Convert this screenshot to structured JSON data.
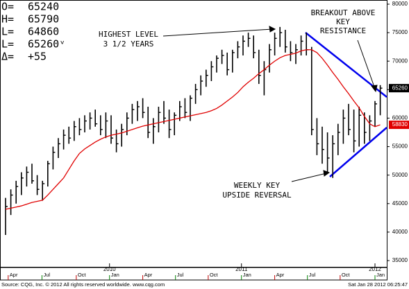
{
  "quote": [
    {
      "label": "O=",
      "value": "65240"
    },
    {
      "label": "H=",
      "value": "65790"
    },
    {
      "label": "L=",
      "value": "64860"
    },
    {
      "label": "L=",
      "value": "65260ᵛ"
    },
    {
      "label": "Δ=",
      "value": "+55"
    }
  ],
  "chart_data": {
    "type": "ohlc",
    "categories": [
      null,
      null,
      null,
      null,
      null,
      null,
      null,
      null,
      null,
      null,
      null,
      null,
      null,
      null,
      null,
      null,
      null,
      null,
      null,
      null,
      null,
      null,
      null,
      null,
      null,
      null,
      null,
      null,
      null,
      null,
      null,
      null,
      null,
      null,
      null,
      null,
      null,
      null,
      null,
      null,
      null,
      null,
      null,
      null,
      null,
      null,
      null,
      null,
      null,
      null,
      null,
      null,
      null,
      null,
      null,
      null,
      null,
      null,
      null,
      null,
      null,
      null,
      null,
      null,
      null,
      null,
      null,
      null,
      null,
      null,
      null,
      null
    ],
    "high": [
      46000,
      47500,
      49000,
      50500,
      51500,
      52000,
      50000,
      49000,
      52500,
      55000,
      56500,
      58000,
      58500,
      59500,
      60000,
      60500,
      61000,
      61500,
      60500,
      61000,
      60500,
      58000,
      59000,
      61000,
      62500,
      63000,
      63500,
      62000,
      60000,
      62000,
      63000,
      61500,
      61000,
      63000,
      63500,
      64000,
      66000,
      67500,
      68500,
      70000,
      71000,
      72000,
      71500,
      72000,
      73500,
      74500,
      75000,
      74500,
      72000,
      70000,
      73000,
      75000,
      76000,
      75500,
      73500,
      73000,
      74500,
      75000,
      72500,
      60000,
      58500,
      57500,
      57000,
      59000,
      61500,
      62500,
      61500,
      62000,
      61000,
      60500,
      63000,
      65790
    ],
    "low": [
      39500,
      43000,
      45000,
      46500,
      48000,
      48500,
      46500,
      45500,
      48000,
      51000,
      53000,
      54500,
      55500,
      56000,
      57000,
      57500,
      58000,
      58500,
      57000,
      56500,
      55500,
      54000,
      55000,
      57000,
      59000,
      59500,
      60000,
      56500,
      55500,
      57500,
      59000,
      56500,
      57000,
      59500,
      60000,
      59500,
      62500,
      64000,
      65500,
      66500,
      68000,
      69500,
      67500,
      68000,
      70500,
      71000,
      72500,
      70500,
      66000,
      64000,
      68000,
      71000,
      72500,
      71500,
      70000,
      69500,
      71000,
      71000,
      57000,
      53500,
      52000,
      50500,
      49500,
      53500,
      55500,
      57000,
      54000,
      55000,
      55500,
      56000,
      58500,
      60500
    ],
    "close": [
      44500,
      46500,
      48000,
      49500,
      50500,
      49000,
      47500,
      48500,
      52000,
      54000,
      55500,
      57000,
      56500,
      58500,
      58000,
      59500,
      60000,
      59000,
      58000,
      59500,
      56500,
      55500,
      58000,
      60000,
      61500,
      62000,
      61000,
      57500,
      58500,
      61000,
      60000,
      58000,
      60500,
      62000,
      61000,
      63500,
      65000,
      66500,
      67500,
      69000,
      70500,
      71000,
      68500,
      71500,
      72500,
      73500,
      74000,
      71500,
      67500,
      68500,
      72000,
      74000,
      75000,
      72500,
      71500,
      72000,
      73500,
      72000,
      58000,
      55500,
      54500,
      53000,
      55500,
      57500,
      60000,
      58000,
      56000,
      60500,
      57500,
      59500,
      62500,
      65260
    ],
    "bar_color": "#000000",
    "moving_average": {
      "color": "#e00000",
      "values": [
        44000,
        44200,
        44400,
        44600,
        44900,
        45200,
        45400,
        45600,
        46500,
        47500,
        48500,
        49500,
        51000,
        52500,
        53800,
        54600,
        55200,
        55800,
        56300,
        56700,
        57000,
        57200,
        57400,
        57700,
        58000,
        58300,
        58600,
        58800,
        59000,
        59200,
        59400,
        59600,
        59800,
        60000,
        60200,
        60400,
        60600,
        60800,
        61000,
        61300,
        61700,
        62300,
        63000,
        63700,
        64500,
        65500,
        66300,
        67000,
        67800,
        68500,
        69300,
        70000,
        70600,
        71000,
        71200,
        71400,
        71800,
        72000,
        72000,
        71500,
        70500,
        69300,
        68000,
        66800,
        65500,
        64300,
        63000,
        61800,
        60300,
        59000,
        58500,
        58830
      ]
    },
    "price_tags": [
      {
        "value": 65260,
        "color": "#000000"
      },
      {
        "value": 58830,
        "color": "#e00000"
      }
    ],
    "ylim": [
      35000,
      80000
    ],
    "yticks": [
      35000,
      40000,
      45000,
      50000,
      55000,
      60000,
      65000,
      70000,
      75000,
      80000
    ],
    "xticks": [
      {
        "value": 0.5,
        "label": "Apr"
      },
      {
        "value": 6.9,
        "label": "Jul"
      },
      {
        "value": 13.4,
        "label": "Oct"
      },
      {
        "value": 19.7,
        "label": "Jan"
      },
      {
        "value": 26,
        "label": "Apr"
      },
      {
        "value": 32.2,
        "label": "Jul"
      },
      {
        "value": 38.4,
        "label": "Oct"
      },
      {
        "value": 44.7,
        "label": "Jan"
      },
      {
        "value": 51,
        "label": "Apr"
      },
      {
        "value": 57.2,
        "label": "Jul"
      },
      {
        "value": 63.4,
        "label": "Oct"
      },
      {
        "value": 70,
        "label": "Jan"
      }
    ],
    "year_ticks": [
      {
        "value": 19.7,
        "label": "2010"
      },
      {
        "value": 44.7,
        "label": "2011"
      },
      {
        "value": 70,
        "label": "2012"
      }
    ],
    "annotations": {
      "highest": [
        "HIGHEST LEVEL",
        "3 1/2 YEARS"
      ],
      "breakout": [
        "BREAKOUT ABOVE",
        "KEY",
        "RESISTANCE"
      ],
      "reversal": [
        "WEEKLY KEY",
        "UPSIDE REVERSAL"
      ]
    }
  },
  "footer": {
    "source": "Source: CQG, Inc. © 2012 All rights reserved worldwide. www.cqg.com",
    "timestamp": "Sat Jan 28 2012 06:25:47"
  }
}
